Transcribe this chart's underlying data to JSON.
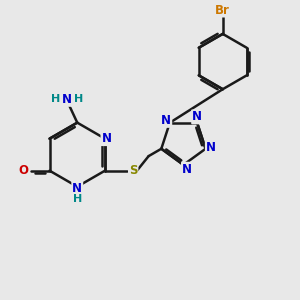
{
  "bg_color": "#e8e8e8",
  "bond_color": "#1a1a1a",
  "N_color": "#0000cc",
  "O_color": "#cc0000",
  "S_color": "#888800",
  "Br_color": "#cc7700",
  "H_color": "#008888",
  "lw": 1.8,
  "figsize": [
    3.0,
    3.0
  ],
  "dpi": 100,
  "xlim": [
    0,
    10
  ],
  "ylim": [
    0,
    10
  ]
}
